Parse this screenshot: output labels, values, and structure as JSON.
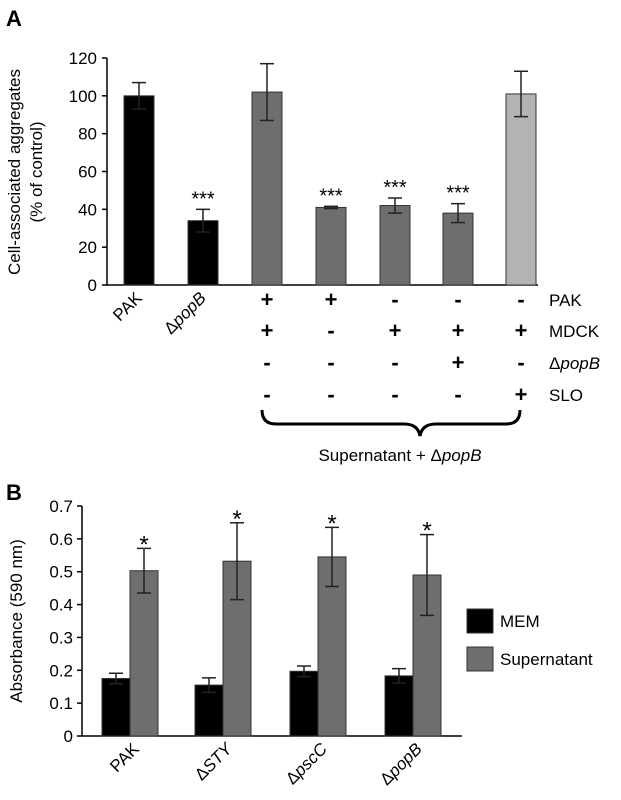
{
  "chart_data": [
    {
      "panel_label": "A",
      "type": "bar",
      "ylabel_lines": [
        "Cell-associated aggregates",
        "(% of control)"
      ],
      "ylim": [
        0,
        120
      ],
      "yticks": [
        0,
        20,
        40,
        60,
        80,
        100,
        120
      ],
      "categories": [
        "PAK",
        "ΔpopB",
        "",
        "",
        "",
        "",
        ""
      ],
      "values": [
        100,
        34,
        102,
        41,
        42,
        38,
        101
      ],
      "errors": [
        7,
        6,
        15,
        0.6,
        4,
        5,
        12
      ],
      "significance": [
        "",
        "***",
        "",
        "***",
        "***",
        "***",
        ""
      ],
      "bar_colors": [
        "#000000",
        "#000000",
        "#6e6e6e",
        "#6e6e6e",
        "#6e6e6e",
        "#6e6e6e",
        "#b3b3b3"
      ],
      "condition_table": {
        "row_labels": [
          "PAK",
          "MDCK",
          "ΔpopB",
          "SLO"
        ],
        "rows": [
          [
            "+",
            "+",
            "-",
            "-",
            "-"
          ],
          [
            "+",
            "-",
            "+",
            "+",
            "+"
          ],
          [
            "-",
            "-",
            "-",
            "+",
            "-"
          ],
          [
            "-",
            "-",
            "-",
            "-",
            "+"
          ]
        ]
      },
      "bracket_label": "Supernatant + ΔpopB"
    },
    {
      "panel_label": "B",
      "type": "bar",
      "ylabel": "Absorbance (590 nm)",
      "ylim": [
        0,
        0.7
      ],
      "yticks": [
        "0",
        "0.1",
        "0.2",
        "0.3",
        "0.4",
        "0.5",
        "0.6",
        "0.7"
      ],
      "categories": [
        "PAK",
        "ΔSTY",
        "ΔpscC",
        "ΔpopB"
      ],
      "series": [
        {
          "name": "MEM",
          "color": "#000000",
          "values": [
            0.175,
            0.155,
            0.197,
            0.183
          ],
          "errors": [
            0.016,
            0.022,
            0.016,
            0.022
          ]
        },
        {
          "name": "Supernatant",
          "color": "#6e6e6e",
          "values": [
            0.503,
            0.532,
            0.545,
            0.49
          ],
          "errors": [
            0.068,
            0.117,
            0.09,
            0.123
          ]
        }
      ],
      "significance": [
        "*",
        "*",
        "*",
        "*"
      ],
      "legend_position": "right"
    }
  ]
}
